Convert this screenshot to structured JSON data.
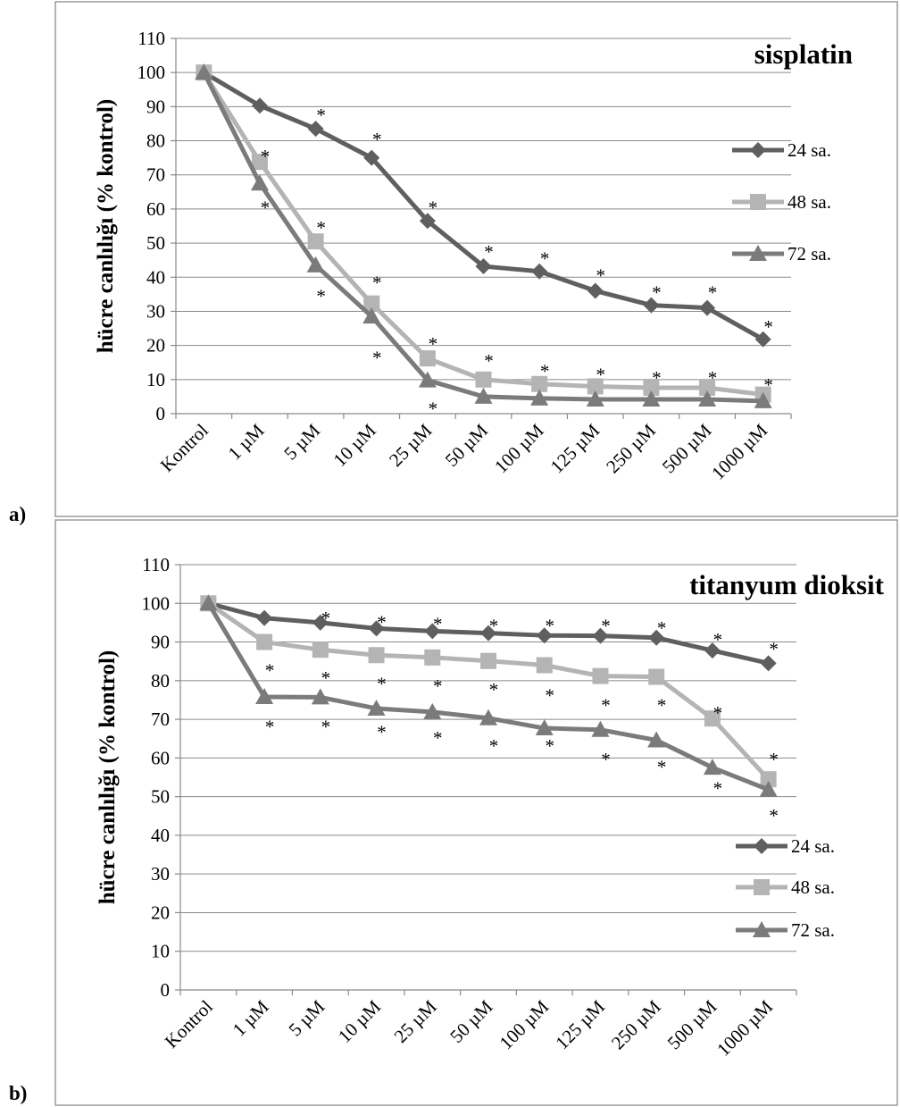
{
  "colors": {
    "series_24": "#5f5f5f",
    "series_48": "#b4b4b4",
    "series_72": "#7b7b7b",
    "grid": "#8a8a8a"
  },
  "panels": [
    {
      "panel_label": "a)",
      "title": "sisplatin"
    },
    {
      "panel_label": "b)",
      "title": "titanyum dioksit"
    }
  ],
  "chart_data": [
    {
      "type": "line",
      "title": "sisplatin",
      "xlabel": "",
      "ylabel": "hücre canlılığı (% kontrol)",
      "ylim": [
        0,
        110
      ],
      "yticks": [
        0,
        10,
        20,
        30,
        40,
        50,
        60,
        70,
        80,
        90,
        100,
        110
      ],
      "grid": true,
      "legend": "right",
      "categories": [
        "Kontrol",
        "1 µM",
        "5 µM",
        "10 µM",
        "25 µM",
        "50 µM",
        "100 µM",
        "125  µM",
        "250 µM",
        "500  µM",
        "1000 µM"
      ],
      "series": [
        {
          "name": "24 sa.",
          "marker": "diamond",
          "values": [
            100,
            90.3,
            83.5,
            75,
            56.5,
            43.2,
            41.7,
            36,
            31.8,
            31,
            21.8
          ]
        },
        {
          "name": "48 sa.",
          "marker": "square",
          "values": [
            100,
            73.8,
            50.5,
            32.3,
            16.2,
            10,
            8.7,
            8,
            7.6,
            7.6,
            5.6
          ]
        },
        {
          "name": "72 sa.",
          "marker": "triangle",
          "values": [
            100,
            67.5,
            43.5,
            28.5,
            9.8,
            5,
            4.5,
            4.2,
            4.2,
            4.2,
            3.7
          ]
        }
      ],
      "annotations": [
        {
          "text": "*",
          "category": 1,
          "value": 77
        },
        {
          "text": "*",
          "category": 1,
          "value": 62
        },
        {
          "text": "*",
          "category": 2,
          "value": 89
        },
        {
          "text": "*",
          "category": 2,
          "value": 56
        },
        {
          "text": "*",
          "category": 2,
          "value": 36
        },
        {
          "text": "*",
          "category": 3,
          "value": 82
        },
        {
          "text": "*",
          "category": 3,
          "value": 40
        },
        {
          "text": "*",
          "category": 3,
          "value": 18
        },
        {
          "text": "*",
          "category": 4,
          "value": 62
        },
        {
          "text": "*",
          "category": 4,
          "value": 22
        },
        {
          "text": "*",
          "category": 4,
          "value": 3
        },
        {
          "text": "*",
          "category": 5,
          "value": 49
        },
        {
          "text": "*",
          "category": 5,
          "value": 17
        },
        {
          "text": "*",
          "category": 6,
          "value": 47
        },
        {
          "text": "*",
          "category": 6,
          "value": 14
        },
        {
          "text": "*",
          "category": 7,
          "value": 42
        },
        {
          "text": "*",
          "category": 7,
          "value": 13
        },
        {
          "text": "*",
          "category": 8,
          "value": 37
        },
        {
          "text": "*",
          "category": 8,
          "value": 12
        },
        {
          "text": "*",
          "category": 9,
          "value": 37
        },
        {
          "text": "*",
          "category": 9,
          "value": 12
        },
        {
          "text": "*",
          "category": 10,
          "value": 27
        },
        {
          "text": "*",
          "category": 10,
          "value": 10
        }
      ]
    },
    {
      "type": "line",
      "title": "titanyum dioksit",
      "xlabel": "",
      "ylabel": "hücre canlılığı (% kontrol)",
      "ylim": [
        0,
        110
      ],
      "yticks": [
        0,
        10,
        20,
        30,
        40,
        50,
        60,
        70,
        80,
        90,
        100,
        110
      ],
      "grid": true,
      "legend": "right",
      "categories": [
        "Kontrol",
        "1 µM",
        "5 µM",
        "10 µM",
        "25 µM",
        "50 µM",
        "100 µM",
        "125  µM",
        "250 µM",
        "500  µM",
        "1000 µM"
      ],
      "series": [
        {
          "name": "24 sa.",
          "marker": "diamond",
          "values": [
            100,
            96.2,
            95,
            93.5,
            92.8,
            92.3,
            91.7,
            91.6,
            91.1,
            87.8,
            84.5
          ]
        },
        {
          "name": "48 sa.",
          "marker": "square",
          "values": [
            100,
            90,
            88,
            86.6,
            86,
            85.1,
            84,
            81.2,
            81,
            70.2,
            54.5
          ]
        },
        {
          "name": "72 sa.",
          "marker": "triangle",
          "values": [
            100,
            75.8,
            75.7,
            72.8,
            71.9,
            70.3,
            67.7,
            67.3,
            64.6,
            57.5,
            51.8
          ]
        }
      ],
      "annotations": [
        {
          "text": "*",
          "category": 1,
          "value": 84
        },
        {
          "text": "*",
          "category": 1,
          "value": 69.5
        },
        {
          "text": "*",
          "category": 2,
          "value": 97.5
        },
        {
          "text": "*",
          "category": 2,
          "value": 82
        },
        {
          "text": "*",
          "category": 2,
          "value": 69.5
        },
        {
          "text": "*",
          "category": 3,
          "value": 96.5
        },
        {
          "text": "*",
          "category": 3,
          "value": 80.5
        },
        {
          "text": "*",
          "category": 3,
          "value": 68
        },
        {
          "text": "*",
          "category": 4,
          "value": 96
        },
        {
          "text": "*",
          "category": 4,
          "value": 80
        },
        {
          "text": "*",
          "category": 4,
          "value": 66.5
        },
        {
          "text": "*",
          "category": 5,
          "value": 95.5
        },
        {
          "text": "*",
          "category": 5,
          "value": 79
        },
        {
          "text": "*",
          "category": 5,
          "value": 64.5
        },
        {
          "text": "*",
          "category": 6,
          "value": 95.5
        },
        {
          "text": "*",
          "category": 6,
          "value": 77.5
        },
        {
          "text": "*",
          "category": 6,
          "value": 64.5
        },
        {
          "text": "*",
          "category": 7,
          "value": 95.5
        },
        {
          "text": "*",
          "category": 7,
          "value": 75
        },
        {
          "text": "*",
          "category": 7,
          "value": 61
        },
        {
          "text": "*",
          "category": 8,
          "value": 95
        },
        {
          "text": "*",
          "category": 8,
          "value": 75
        },
        {
          "text": "*",
          "category": 8,
          "value": 59
        },
        {
          "text": "*",
          "category": 9,
          "value": 92
        },
        {
          "text": "*",
          "category": 9,
          "value": 73
        },
        {
          "text": "*",
          "category": 9,
          "value": 53.5
        },
        {
          "text": "*",
          "category": 10,
          "value": 89.5
        },
        {
          "text": "*",
          "category": 10,
          "value": 61
        },
        {
          "text": "*",
          "category": 10,
          "value": 46.5
        }
      ]
    }
  ]
}
